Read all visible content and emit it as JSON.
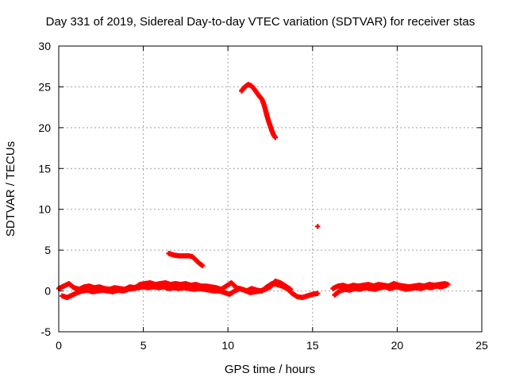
{
  "chart_data": {
    "type": "scatter",
    "title": "Day 331 of 2019, Sidereal Day-to-day VTEC variation (SDTVAR) for receiver stas",
    "xlabel": "GPS time / hours",
    "ylabel": "SDTVAR / TECUs",
    "xlim": [
      0,
      25
    ],
    "ylim": [
      -5,
      30
    ],
    "xticks": [
      "0",
      "5",
      "10",
      "15",
      "20",
      "25"
    ],
    "yticks": [
      "-5",
      "0",
      "5",
      "10",
      "15",
      "20",
      "25",
      "30"
    ],
    "grid": true,
    "marker": "plus",
    "color": "#ff0000",
    "series": [
      {
        "name": "SDTVAR",
        "segments": [
          {
            "x": [
              0.0,
              0.3,
              0.6,
              0.9,
              1.2,
              1.5,
              1.8,
              2.1,
              2.4,
              2.7,
              3.0,
              3.3,
              3.6,
              3.9,
              4.2,
              4.5,
              4.8,
              5.1,
              5.4,
              5.7,
              6.0,
              6.3,
              6.6,
              6.9,
              7.2,
              7.5,
              7.8,
              8.1,
              8.4,
              8.7,
              9.0,
              9.3,
              9.6,
              9.9,
              10.2,
              10.5,
              10.8,
              11.1,
              11.4,
              11.7,
              12.0,
              12.3,
              12.6,
              12.9,
              13.2,
              13.5,
              13.8,
              14.1,
              14.4,
              14.7,
              15.0,
              15.3
            ],
            "y": [
              0.3,
              0.6,
              0.9,
              0.4,
              0.2,
              0.5,
              0.6,
              0.4,
              0.5,
              0.3,
              0.2,
              0.4,
              0.3,
              0.2,
              0.5,
              0.4,
              0.8,
              0.9,
              1.0,
              0.8,
              0.9,
              1.0,
              0.8,
              0.9,
              0.8,
              0.9,
              0.7,
              0.8,
              0.6,
              0.6,
              0.5,
              0.4,
              0.2,
              0.6,
              1.0,
              0.4,
              0.2,
              0.0,
              0.3,
              0.1,
              0.0,
              0.5,
              0.9,
              0.8,
              0.6,
              0.3,
              -0.3,
              -0.7,
              -0.8,
              -0.6,
              -0.4,
              -0.3
            ]
          },
          {
            "x": [
              0.2,
              0.5,
              0.8,
              1.1,
              1.4,
              1.7,
              2.0,
              2.3,
              2.6,
              2.9,
              3.2,
              3.5,
              3.8,
              4.1,
              4.4,
              4.7,
              5.0,
              5.3,
              5.6,
              5.9,
              6.2,
              6.5,
              6.8,
              7.1,
              7.4,
              7.7,
              8.0,
              8.3,
              8.6,
              8.9,
              9.2,
              9.5,
              9.8,
              10.1,
              10.4,
              10.7,
              11.0,
              11.3,
              11.6,
              11.9,
              12.2,
              12.5,
              12.8,
              13.1,
              13.4,
              13.7
            ],
            "y": [
              -0.6,
              -0.8,
              -0.5,
              -0.2,
              0.0,
              0.1,
              -0.1,
              0.0,
              0.1,
              0.0,
              -0.1,
              0.1,
              0.0,
              0.2,
              0.3,
              0.4,
              0.5,
              0.4,
              0.5,
              0.4,
              0.5,
              0.3,
              0.4,
              0.3,
              0.4,
              0.3,
              0.2,
              0.3,
              0.2,
              0.1,
              0.0,
              0.0,
              -0.2,
              -0.4,
              0.0,
              0.3,
              0.1,
              -0.2,
              -0.1,
              0.0,
              0.2,
              0.5,
              1.2,
              1.0,
              0.6,
              0.2
            ]
          },
          {
            "x": [
              6.5,
              6.8,
              7.1,
              7.4,
              7.7,
              7.9,
              8.1,
              8.3,
              8.5
            ],
            "y": [
              4.6,
              4.4,
              4.3,
              4.3,
              4.3,
              4.2,
              3.8,
              3.4,
              3.1
            ]
          },
          {
            "x": [
              10.8,
              11.0,
              11.2,
              11.4,
              11.6,
              11.8,
              12.0,
              12.1,
              12.2,
              12.3,
              12.4,
              12.5,
              12.6,
              12.7,
              12.8
            ],
            "y": [
              24.5,
              25.0,
              25.3,
              25.1,
              24.6,
              24.0,
              23.5,
              23.0,
              22.3,
              21.5,
              20.8,
              20.2,
              19.6,
              19.1,
              18.8
            ]
          },
          {
            "x": [
              15.3
            ],
            "y": [
              7.9
            ]
          },
          {
            "x": [
              16.2,
              16.5,
              16.8,
              17.1,
              17.4,
              17.7,
              18.0,
              18.3,
              18.6,
              18.9,
              19.2,
              19.5,
              19.8,
              20.1,
              20.4,
              20.7,
              21.0,
              21.3,
              21.6,
              21.9,
              22.2,
              22.5,
              22.8,
              23.0
            ],
            "y": [
              0.3,
              0.6,
              0.7,
              0.5,
              0.7,
              0.6,
              0.7,
              0.8,
              0.6,
              0.8,
              0.7,
              0.6,
              0.9,
              0.7,
              0.6,
              0.5,
              0.6,
              0.7,
              0.6,
              0.8,
              0.7,
              0.8,
              0.9,
              0.8
            ]
          },
          {
            "x": [
              16.3,
              16.6,
              16.9,
              17.2,
              17.5,
              17.8,
              18.1,
              18.4,
              18.7,
              19.0,
              19.3,
              19.6,
              19.9,
              20.2,
              20.5,
              20.8,
              21.1,
              21.4,
              21.7,
              22.0,
              22.3,
              22.6,
              22.9
            ],
            "y": [
              -0.5,
              0.0,
              0.2,
              0.1,
              0.3,
              0.2,
              0.4,
              0.3,
              0.2,
              0.4,
              0.5,
              0.3,
              0.5,
              0.4,
              0.2,
              0.3,
              0.4,
              0.3,
              0.5,
              0.4,
              0.6,
              0.5,
              0.7
            ]
          }
        ]
      }
    ]
  }
}
